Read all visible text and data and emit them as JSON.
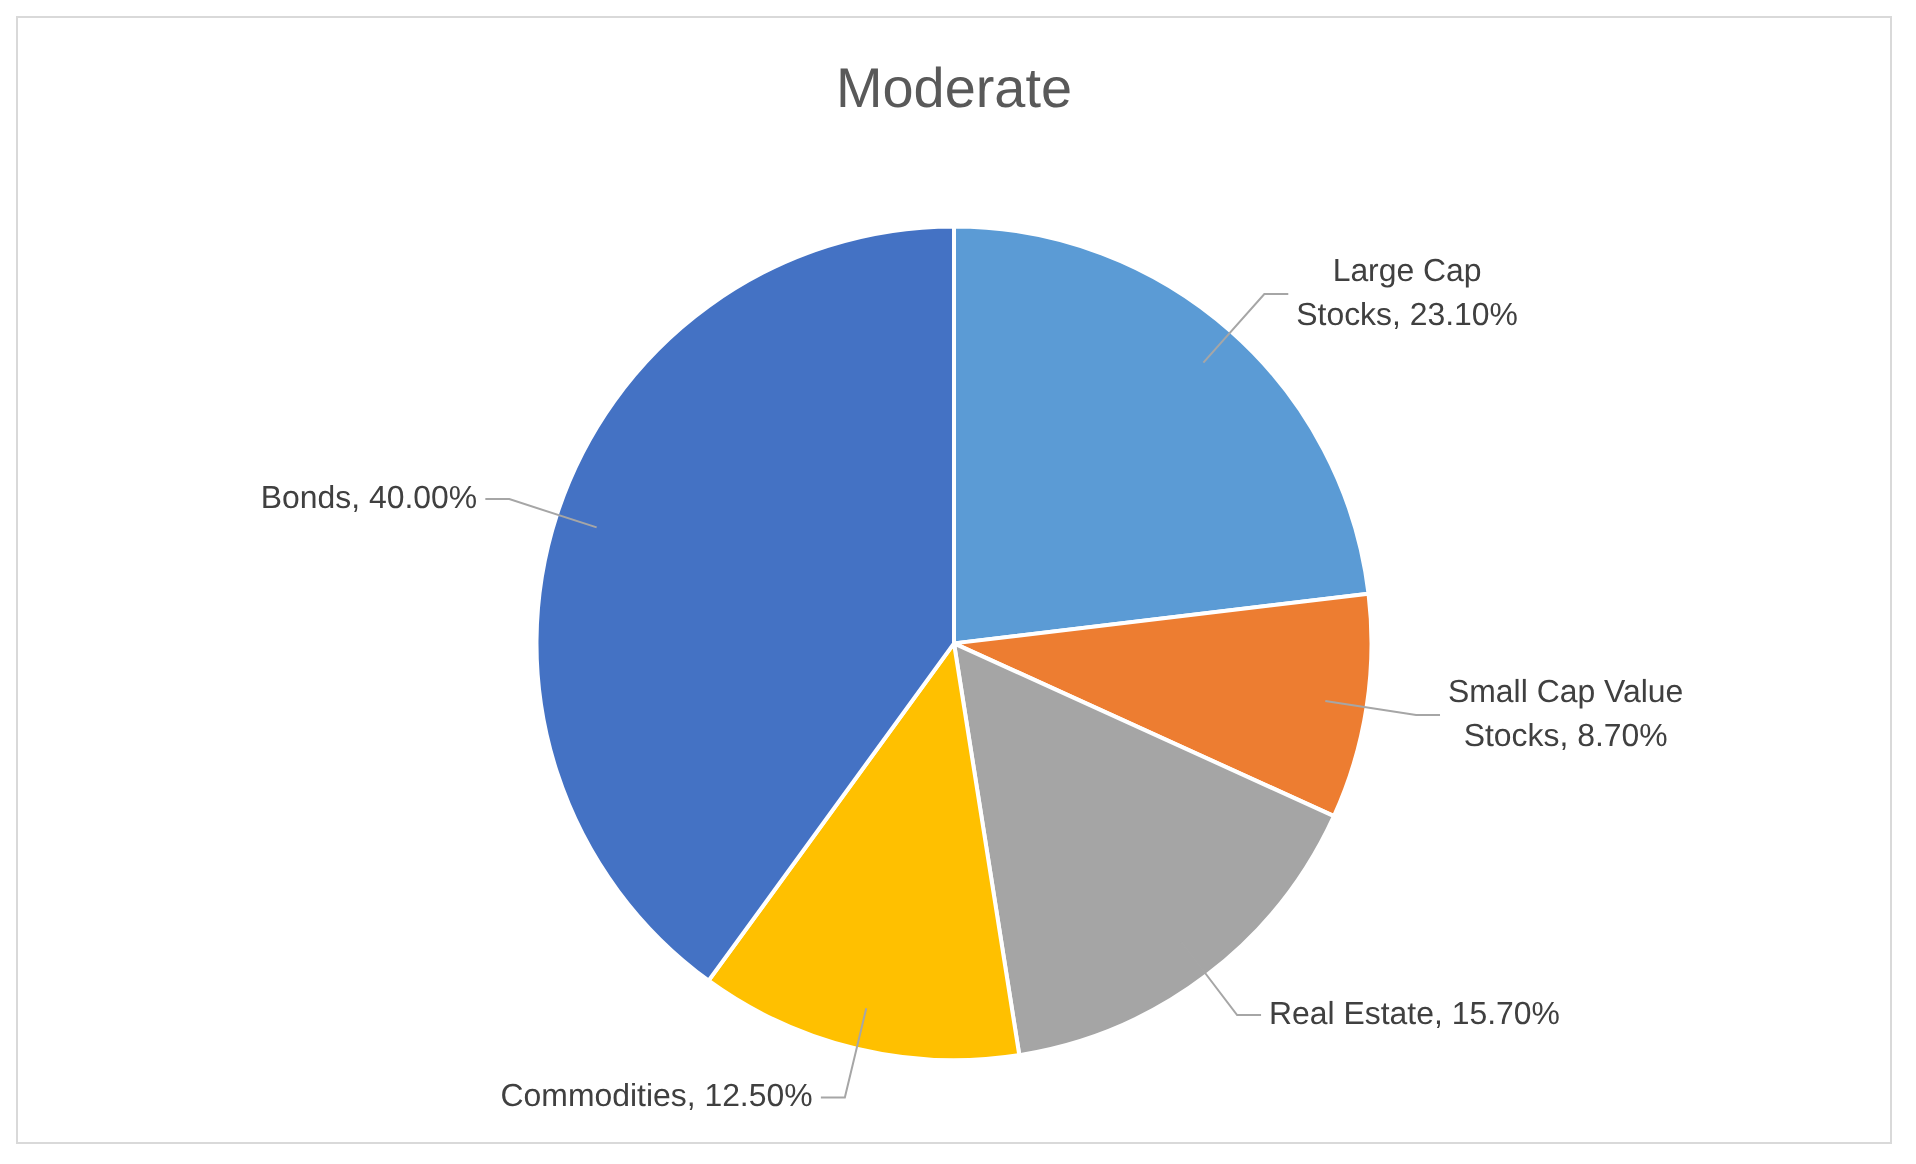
{
  "chart_data": {
    "type": "pie",
    "title": "Moderate",
    "categories": [
      "Large Cap Stocks",
      "Small Cap Value Stocks",
      "Real Estate",
      "Commodities",
      "Bonds"
    ],
    "values": [
      23.1,
      8.7,
      15.7,
      12.5,
      40
    ],
    "colors": [
      "#5b9bd5",
      "#ed7d31",
      "#a5a5a5",
      "#ffc000",
      "#4472c4"
    ],
    "value_labels": [
      "23.10%",
      "8.70%",
      "15.70%",
      "12.50%",
      "40.00%"
    ],
    "legend": false
  }
}
